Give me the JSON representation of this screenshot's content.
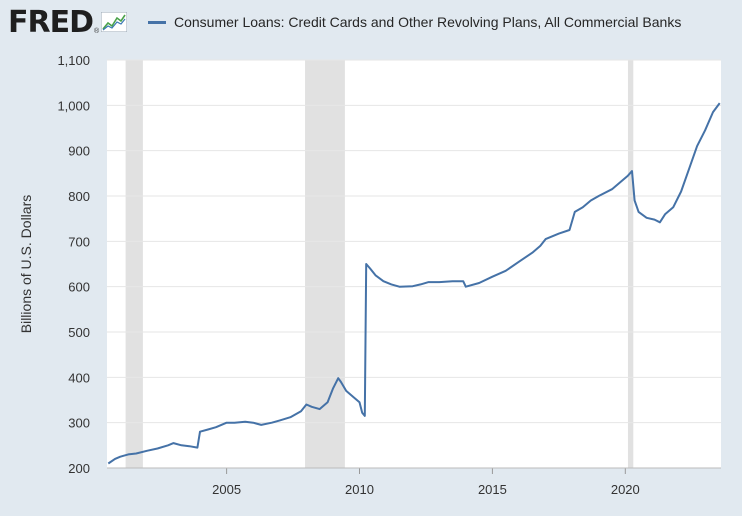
{
  "brand": {
    "logo_text": "FRED",
    "logo_reg": "®",
    "logo_icon": "line-graph-icon"
  },
  "chart_data": {
    "type": "line",
    "title": "",
    "ylabel": "Billions of U.S. Dollars",
    "xlabel": "",
    "ylim": [
      200,
      1100
    ],
    "xlim": [
      2000.5,
      2023.6
    ],
    "yticks": [
      200,
      300,
      400,
      500,
      600,
      700,
      800,
      900,
      1000,
      1100
    ],
    "ytick_labels": [
      "200",
      "300",
      "400",
      "500",
      "600",
      "700",
      "800",
      "900",
      "1,000",
      "1,100"
    ],
    "xticks": [
      2005,
      2010,
      2015,
      2020
    ],
    "xtick_labels": [
      "2005",
      "2010",
      "2015",
      "2020"
    ],
    "grid": "horizontal",
    "legend_placement": "top",
    "colors": {
      "line": "#4572a7",
      "recession": "#e1e1e1",
      "plot_bg": "#ffffff",
      "page_bg": "#e1e9f0"
    },
    "recessions": [
      [
        2001.2,
        2001.85
      ],
      [
        2007.95,
        2009.45
      ],
      [
        2020.1,
        2020.3
      ]
    ],
    "series": [
      {
        "name": "Consumer Loans: Credit Cards and Other Revolving Plans, All Commercial Banks",
        "points": [
          [
            2000.55,
            210
          ],
          [
            2000.8,
            220
          ],
          [
            2001.0,
            225
          ],
          [
            2001.3,
            230
          ],
          [
            2001.6,
            232
          ],
          [
            2002.0,
            238
          ],
          [
            2002.4,
            243
          ],
          [
            2002.8,
            250
          ],
          [
            2003.0,
            255
          ],
          [
            2003.3,
            250
          ],
          [
            2003.6,
            248
          ],
          [
            2003.9,
            245
          ],
          [
            2004.0,
            280
          ],
          [
            2004.3,
            285
          ],
          [
            2004.6,
            290
          ],
          [
            2005.0,
            300
          ],
          [
            2005.3,
            300
          ],
          [
            2005.7,
            302
          ],
          [
            2006.0,
            300
          ],
          [
            2006.3,
            295
          ],
          [
            2006.7,
            300
          ],
          [
            2007.0,
            305
          ],
          [
            2007.4,
            312
          ],
          [
            2007.8,
            325
          ],
          [
            2008.0,
            340
          ],
          [
            2008.2,
            335
          ],
          [
            2008.5,
            330
          ],
          [
            2008.8,
            345
          ],
          [
            2009.0,
            375
          ],
          [
            2009.2,
            398
          ],
          [
            2009.3,
            390
          ],
          [
            2009.5,
            370
          ],
          [
            2009.8,
            355
          ],
          [
            2010.0,
            345
          ],
          [
            2010.1,
            322
          ],
          [
            2010.2,
            315
          ],
          [
            2010.25,
            650
          ],
          [
            2010.4,
            640
          ],
          [
            2010.6,
            625
          ],
          [
            2010.9,
            612
          ],
          [
            2011.2,
            605
          ],
          [
            2011.5,
            600
          ],
          [
            2012.0,
            601
          ],
          [
            2012.3,
            605
          ],
          [
            2012.6,
            610
          ],
          [
            2013.0,
            610
          ],
          [
            2013.5,
            612
          ],
          [
            2013.9,
            612
          ],
          [
            2014.0,
            600
          ],
          [
            2014.5,
            608
          ],
          [
            2015.0,
            622
          ],
          [
            2015.5,
            635
          ],
          [
            2016.0,
            655
          ],
          [
            2016.5,
            675
          ],
          [
            2016.8,
            690
          ],
          [
            2017.0,
            705
          ],
          [
            2017.5,
            717
          ],
          [
            2017.9,
            725
          ],
          [
            2018.1,
            765
          ],
          [
            2018.4,
            775
          ],
          [
            2018.7,
            790
          ],
          [
            2019.0,
            800
          ],
          [
            2019.5,
            815
          ],
          [
            2019.9,
            835
          ],
          [
            2020.1,
            845
          ],
          [
            2020.25,
            855
          ],
          [
            2020.35,
            790
          ],
          [
            2020.5,
            765
          ],
          [
            2020.8,
            752
          ],
          [
            2021.1,
            748
          ],
          [
            2021.3,
            742
          ],
          [
            2021.5,
            760
          ],
          [
            2021.8,
            775
          ],
          [
            2022.1,
            810
          ],
          [
            2022.4,
            860
          ],
          [
            2022.7,
            910
          ],
          [
            2023.0,
            945
          ],
          [
            2023.3,
            985
          ],
          [
            2023.55,
            1005
          ]
        ]
      }
    ]
  }
}
